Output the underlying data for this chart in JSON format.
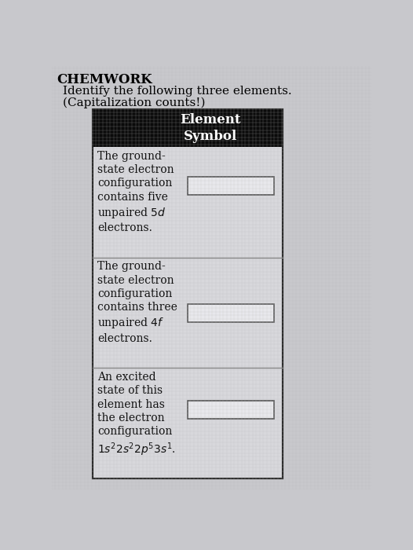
{
  "title": "CHEMWORK",
  "subtitle1": "Identify the following three elements.",
  "subtitle2": "(Capitalization counts!)",
  "header": "Element\nSymbol",
  "bg_color": "#c8c8cc",
  "table_bg": "#d8d8dc",
  "header_bg": "#0a0a0a",
  "header_text_color": "#ffffff",
  "cell_text_color": "#111111",
  "title_color": "#000000",
  "input_box_color": "#e8e8ec",
  "input_box_border": "#555555",
  "table_border_color": "#222222",
  "row_sep_color": "#888888"
}
